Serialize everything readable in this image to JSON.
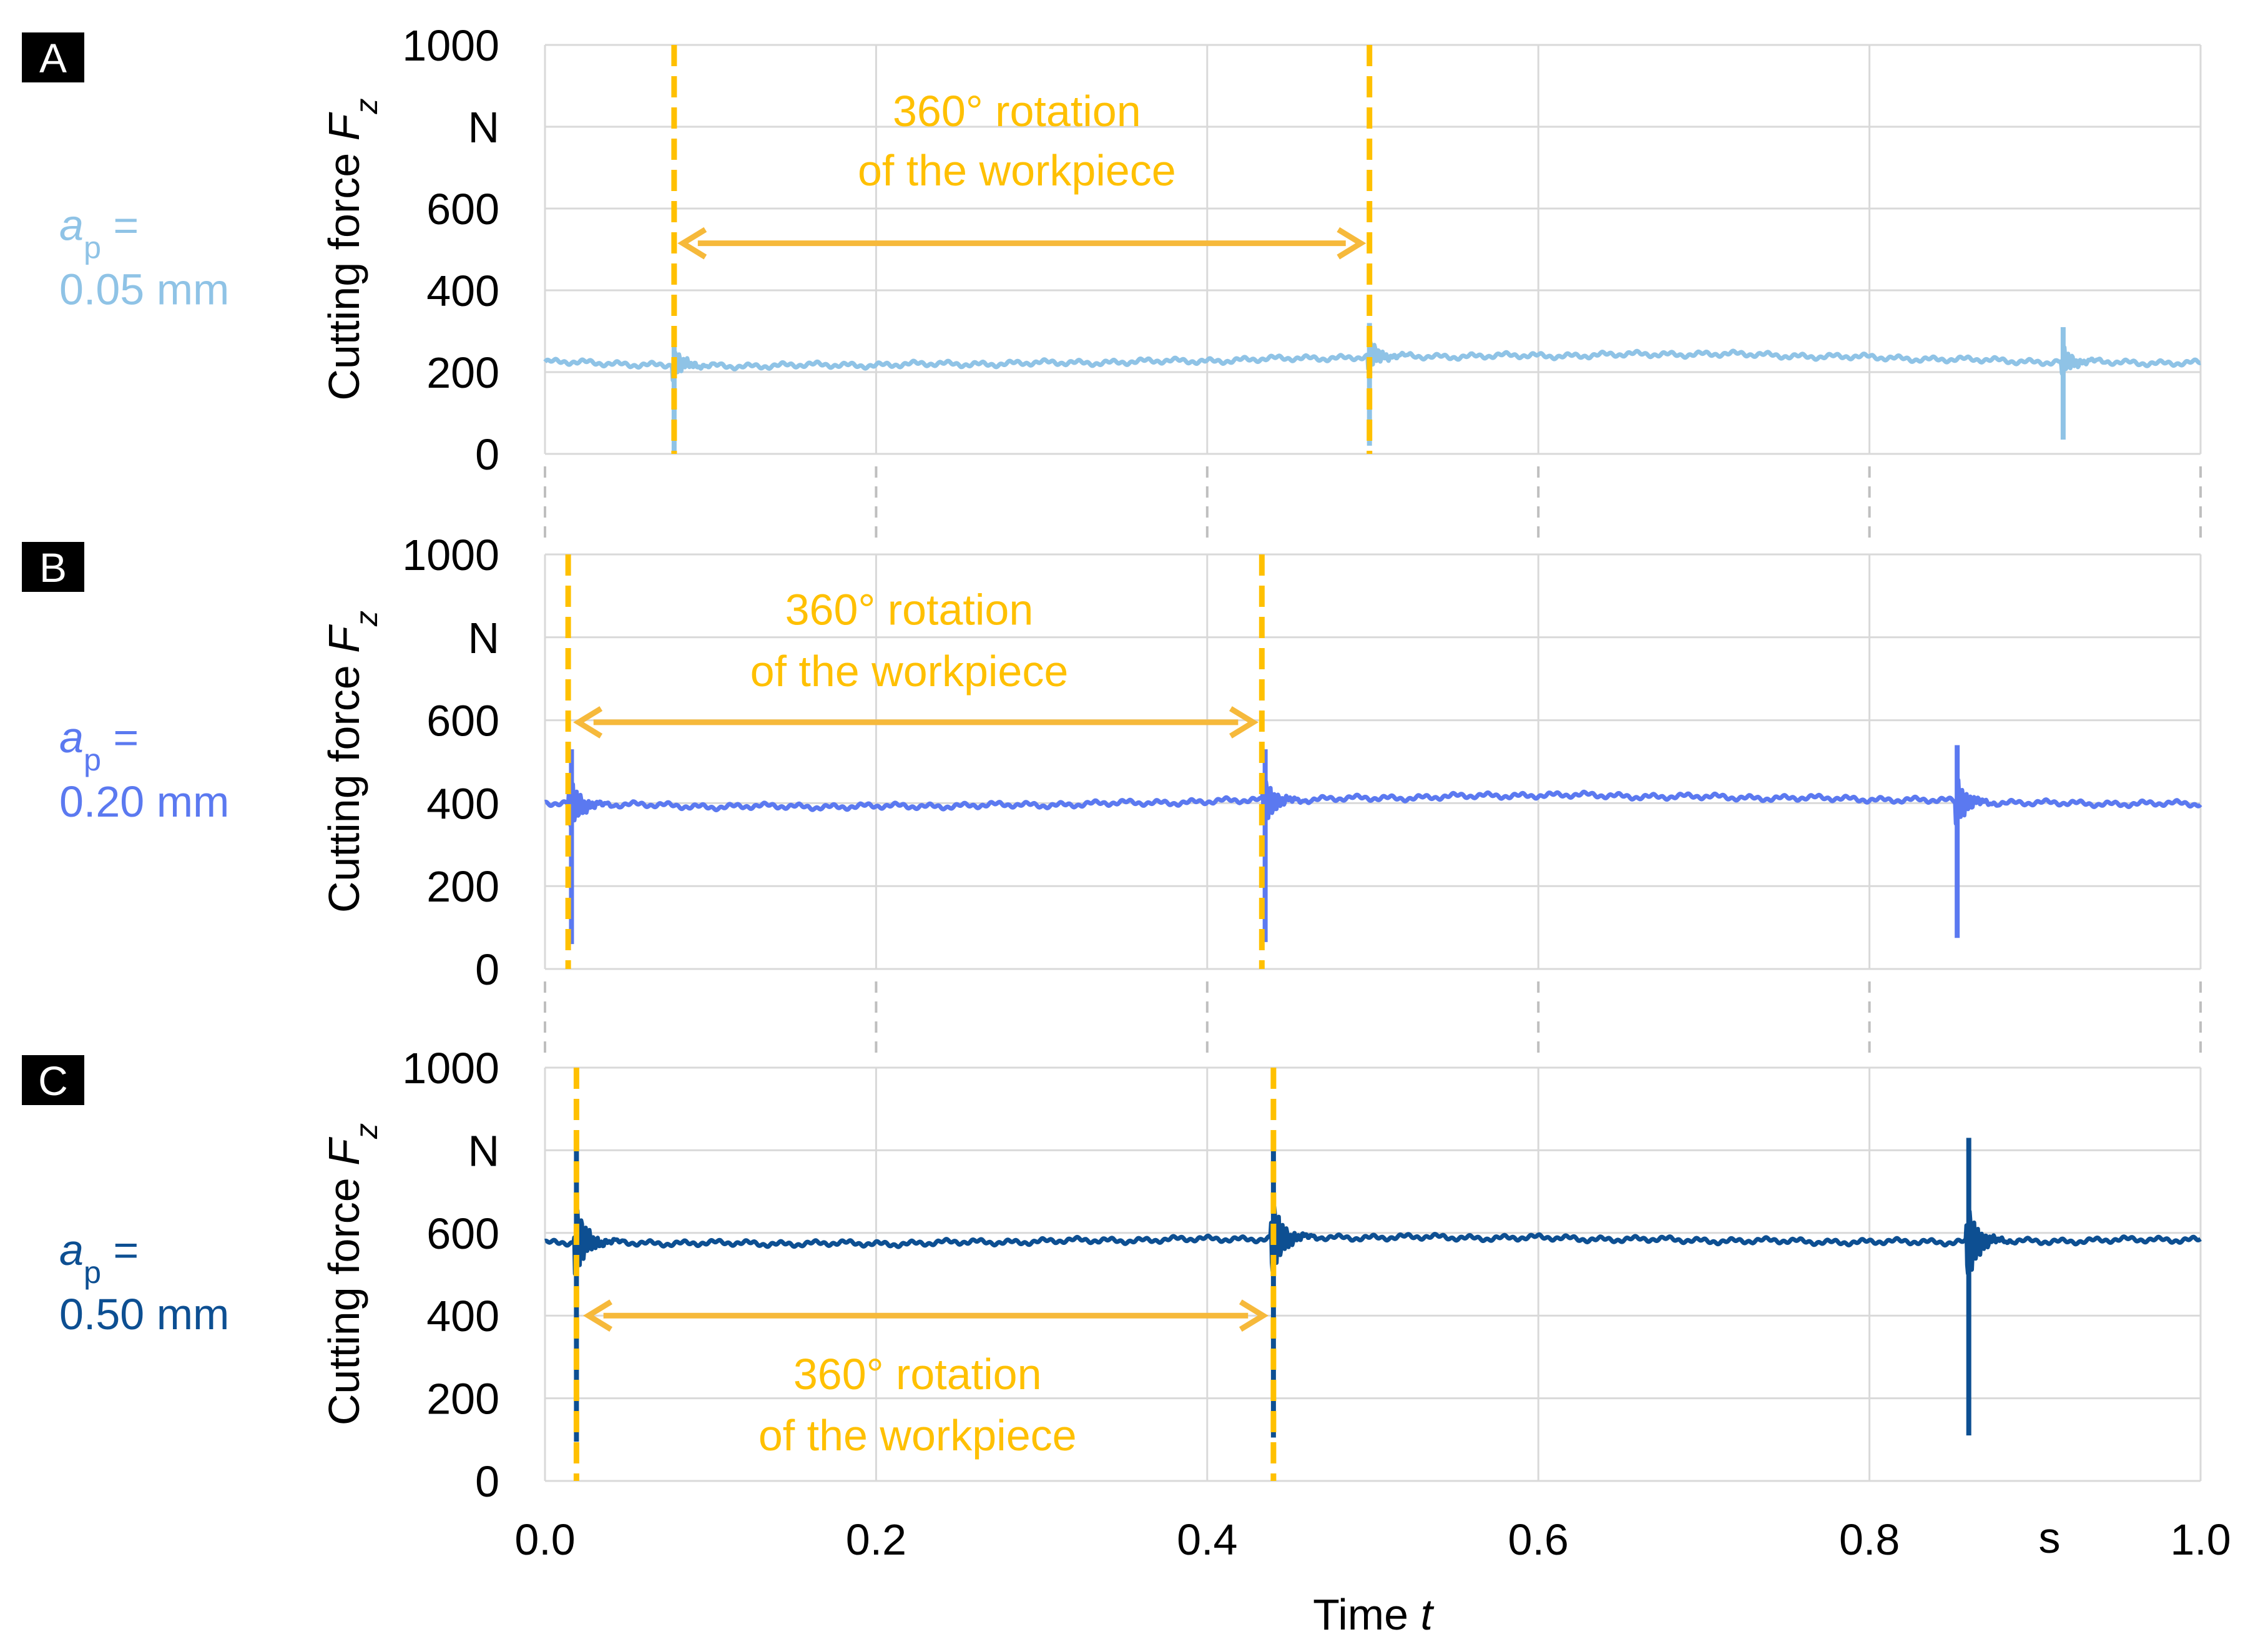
{
  "colors": {
    "grid": "#d9d9d9",
    "axis_text": "#000000",
    "annotation": "#ffc000",
    "annotation_arrow": "#f6b93b",
    "panel_label_bg": "#000000",
    "panel_label_fg": "#ffffff"
  },
  "shared_axis": {
    "xlabel_prefix": "Time ",
    "xlabel_var": "t",
    "x_unit": "s",
    "x_tick_labels": [
      "0.0",
      "0.2",
      "0.4",
      "0.6",
      "0.8",
      "1.0"
    ]
  },
  "chart_data": [
    {
      "type": "line",
      "panel_label": "A",
      "param_var": "a",
      "param_sub": "p",
      "param_eq": " =",
      "param_value": "0.05 mm",
      "color": "#8fc3e6",
      "ylabel_prefix": "Cutting force ",
      "ylabel_var": "F",
      "ylabel_sub": "z",
      "y_unit": "N",
      "y_tick_labels": [
        "0",
        "200",
        "400",
        "600",
        "N",
        "1000"
      ],
      "xlim": [
        0,
        1.0
      ],
      "ylim": [
        0,
        1000
      ],
      "baseline": [
        [
          0.0,
          225
        ],
        [
          0.1,
          215
        ],
        [
          0.2,
          218
        ],
        [
          0.3,
          222
        ],
        [
          0.4,
          228
        ],
        [
          0.5,
          238
        ],
        [
          0.6,
          240
        ],
        [
          0.7,
          245
        ],
        [
          0.8,
          236
        ],
        [
          0.9,
          226
        ],
        [
          1.0,
          222
        ]
      ],
      "spikes": [
        {
          "t": 0.078,
          "max": 295,
          "min": 5
        },
        {
          "t": 0.498,
          "max": 320,
          "min": 20
        },
        {
          "t": 0.917,
          "max": 310,
          "min": 35
        }
      ],
      "rotation_markers": [
        0.078,
        0.498
      ],
      "arrow": {
        "from": 0.081,
        "to": 0.495,
        "y": 515
      },
      "annotation_lines": [
        "360° rotation",
        "of the workpiece"
      ],
      "annotation_x": 0.285,
      "annotation_y": [
        840,
        695
      ]
    },
    {
      "type": "line",
      "panel_label": "B",
      "param_var": "a",
      "param_sub": "p",
      "param_eq": " =",
      "param_value": "0.20 mm",
      "color": "#5b79f0",
      "ylabel_prefix": "Cutting force ",
      "ylabel_var": "F",
      "ylabel_sub": "z",
      "y_unit": "N",
      "y_tick_labels": [
        "0",
        "200",
        "400",
        "600",
        "N",
        "1000"
      ],
      "xlim": [
        0,
        1.0
      ],
      "ylim": [
        0,
        1000
      ],
      "baseline": [
        [
          0.0,
          400
        ],
        [
          0.1,
          392
        ],
        [
          0.2,
          392
        ],
        [
          0.3,
          396
        ],
        [
          0.4,
          404
        ],
        [
          0.5,
          412
        ],
        [
          0.6,
          420
        ],
        [
          0.7,
          415
        ],
        [
          0.8,
          410
        ],
        [
          0.9,
          400
        ],
        [
          1.0,
          398
        ]
      ],
      "spikes": [
        {
          "t": 0.016,
          "max": 530,
          "min": 60
        },
        {
          "t": 0.435,
          "max": 530,
          "min": 65
        },
        {
          "t": 0.853,
          "max": 540,
          "min": 75
        }
      ],
      "rotation_markers": [
        0.014,
        0.433
      ],
      "arrow": {
        "from": 0.018,
        "to": 0.43,
        "y": 595
      },
      "annotation_lines": [
        "360° rotation",
        "of the workpiece"
      ],
      "annotation_x": 0.22,
      "annotation_y": [
        868,
        720
      ]
    },
    {
      "type": "line",
      "panel_label": "C",
      "param_var": "a",
      "param_sub": "p",
      "param_eq": " =",
      "param_value": "0.50 mm",
      "color": "#0d4f92",
      "ylabel_prefix": "Cutting force ",
      "ylabel_var": "F",
      "ylabel_sub": "z",
      "y_unit": "N",
      "y_tick_labels": [
        "0",
        "200",
        "400",
        "600",
        "N",
        "1000"
      ],
      "xlim": [
        0,
        1.0
      ],
      "ylim": [
        0,
        1000
      ],
      "baseline": [
        [
          0.0,
          578
        ],
        [
          0.1,
          575
        ],
        [
          0.2,
          574
        ],
        [
          0.3,
          580
        ],
        [
          0.4,
          585
        ],
        [
          0.5,
          590
        ],
        [
          0.6,
          588
        ],
        [
          0.7,
          582
        ],
        [
          0.8,
          578
        ],
        [
          0.9,
          580
        ],
        [
          1.0,
          585
        ]
      ],
      "spikes": [
        {
          "t": 0.019,
          "max": 810,
          "min": 95
        },
        {
          "t": 0.44,
          "max": 830,
          "min": 105
        },
        {
          "t": 0.86,
          "max": 830,
          "min": 110
        }
      ],
      "rotation_markers": [
        0.019,
        0.44
      ],
      "arrow": {
        "from": 0.024,
        "to": 0.436,
        "y": 400
      },
      "annotation_lines": [
        "360° rotation",
        "of the workpiece"
      ],
      "annotation_x": 0.225,
      "annotation_y": [
        260,
        112
      ]
    }
  ]
}
